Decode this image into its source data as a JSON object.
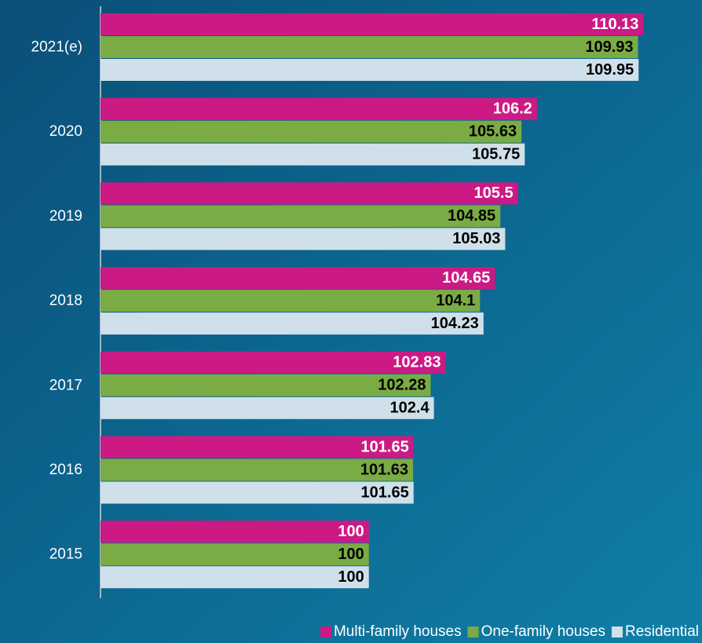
{
  "chart_data": {
    "type": "hbar",
    "categories": [
      "2021(e)",
      "2020",
      "2019",
      "2018",
      "2017",
      "2016",
      "2015"
    ],
    "series": [
      {
        "name": "Multi-family houses",
        "color": "#cc1a84",
        "label_color": "#ffffff",
        "values": [
          110.13,
          106.2,
          105.5,
          104.65,
          102.83,
          101.65,
          100
        ]
      },
      {
        "name": "One-family houses",
        "color": "#7aab45",
        "label_color": "#000000",
        "values": [
          109.93,
          105.63,
          104.85,
          104.1,
          102.28,
          101.63,
          100
        ]
      },
      {
        "name": "Residential",
        "color": "#cfe0ea",
        "label_color": "#000000",
        "values": [
          109.95,
          105.75,
          105.03,
          104.23,
          102.4,
          101.65,
          100
        ]
      }
    ],
    "xlim": [
      90.1,
      112
    ],
    "legend": "bottom-right"
  }
}
